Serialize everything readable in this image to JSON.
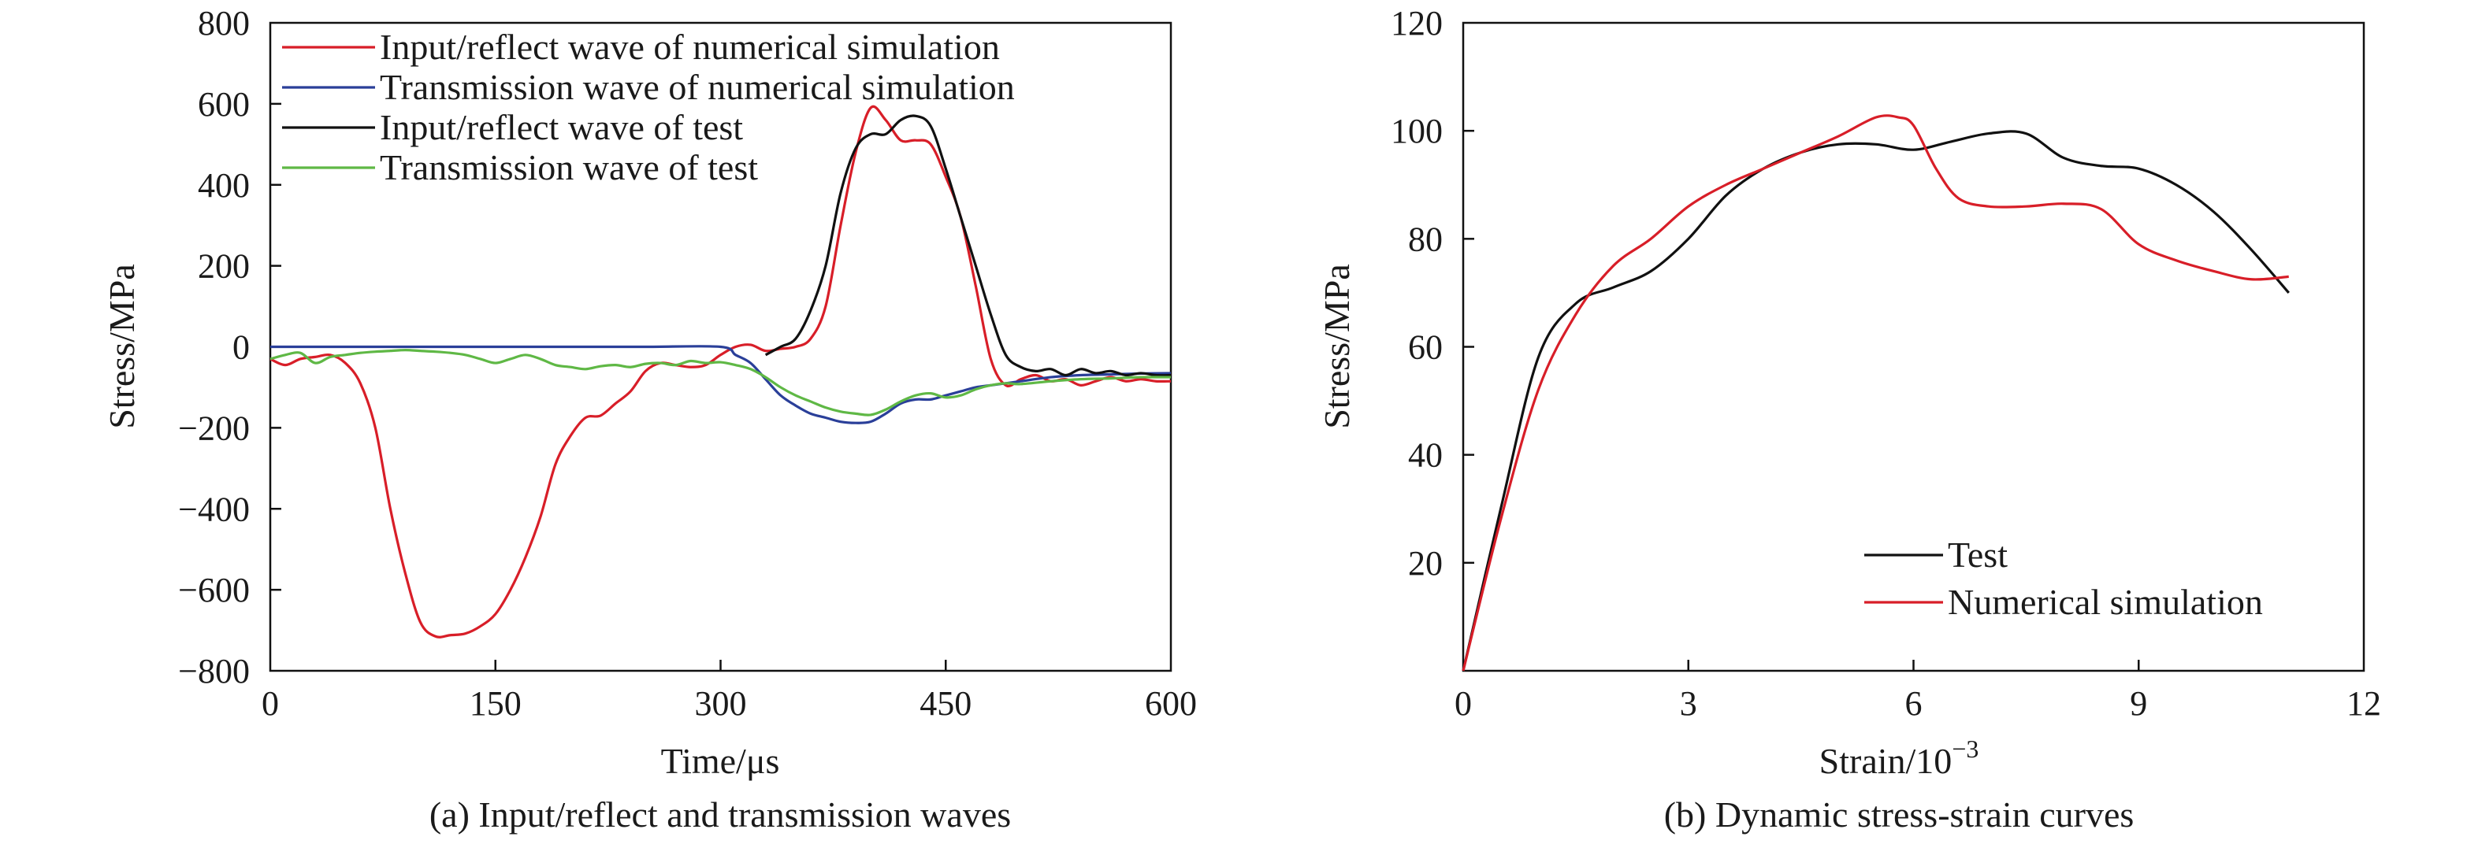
{
  "colors": {
    "red": "#d81e28",
    "blue": "#2a3f99",
    "black": "#111111",
    "green": "#5fb845"
  },
  "chart_data": [
    {
      "type": "line",
      "caption": "(a) Input/reflect and transmission waves",
      "xlabel": "Time/μs",
      "ylabel": "Stress/MPa",
      "xlim": [
        0,
        600
      ],
      "ylim": [
        -800,
        800
      ],
      "xticks": [
        0,
        150,
        300,
        450,
        600
      ],
      "yticks": [
        -800,
        -600,
        -400,
        -200,
        0,
        200,
        400,
        600,
        800
      ],
      "ytick_labels": [
        "−800",
        "−600",
        "−400",
        "−200",
        "0",
        "200",
        "400",
        "600",
        "800"
      ],
      "legend_position": "top-left",
      "series": [
        {
          "name": "Input/reflect wave of numerical simulation",
          "color": "#d81e28",
          "points": [
            [
              0,
              -30
            ],
            [
              10,
              -45
            ],
            [
              20,
              -30
            ],
            [
              30,
              -25
            ],
            [
              40,
              -20
            ],
            [
              50,
              -40
            ],
            [
              60,
              -90
            ],
            [
              70,
              -200
            ],
            [
              80,
              -400
            ],
            [
              90,
              -560
            ],
            [
              100,
              -680
            ],
            [
              110,
              -715
            ],
            [
              120,
              -712
            ],
            [
              130,
              -708
            ],
            [
              140,
              -690
            ],
            [
              150,
              -660
            ],
            [
              160,
              -600
            ],
            [
              170,
              -520
            ],
            [
              180,
              -420
            ],
            [
              190,
              -290
            ],
            [
              200,
              -220
            ],
            [
              210,
              -175
            ],
            [
              220,
              -170
            ],
            [
              230,
              -140
            ],
            [
              240,
              -110
            ],
            [
              250,
              -60
            ],
            [
              260,
              -40
            ],
            [
              270,
              -45
            ],
            [
              280,
              -50
            ],
            [
              290,
              -45
            ],
            [
              300,
              -20
            ],
            [
              310,
              0
            ],
            [
              320,
              5
            ],
            [
              330,
              -10
            ],
            [
              340,
              -5
            ],
            [
              350,
              0
            ],
            [
              360,
              20
            ],
            [
              370,
              100
            ],
            [
              380,
              300
            ],
            [
              390,
              480
            ],
            [
              400,
              590
            ],
            [
              410,
              560
            ],
            [
              420,
              510
            ],
            [
              430,
              510
            ],
            [
              440,
              500
            ],
            [
              450,
              420
            ],
            [
              460,
              320
            ],
            [
              470,
              150
            ],
            [
              480,
              -30
            ],
            [
              490,
              -95
            ],
            [
              500,
              -80
            ],
            [
              510,
              -70
            ],
            [
              520,
              -85
            ],
            [
              530,
              -80
            ],
            [
              540,
              -95
            ],
            [
              550,
              -85
            ],
            [
              560,
              -75
            ],
            [
              570,
              -85
            ],
            [
              580,
              -80
            ],
            [
              590,
              -85
            ],
            [
              600,
              -85
            ]
          ]
        },
        {
          "name": "Transmission wave of numerical simulation",
          "color": "#2a3f99",
          "points": [
            [
              0,
              0
            ],
            [
              50,
              0
            ],
            [
              100,
              0
            ],
            [
              150,
              0
            ],
            [
              200,
              0
            ],
            [
              250,
              0
            ],
            [
              300,
              0
            ],
            [
              310,
              -20
            ],
            [
              320,
              -40
            ],
            [
              330,
              -80
            ],
            [
              340,
              -120
            ],
            [
              350,
              -145
            ],
            [
              360,
              -165
            ],
            [
              370,
              -175
            ],
            [
              380,
              -185
            ],
            [
              390,
              -188
            ],
            [
              400,
              -185
            ],
            [
              410,
              -165
            ],
            [
              420,
              -140
            ],
            [
              430,
              -130
            ],
            [
              440,
              -130
            ],
            [
              450,
              -120
            ],
            [
              460,
              -110
            ],
            [
              470,
              -100
            ],
            [
              480,
              -95
            ],
            [
              490,
              -90
            ],
            [
              500,
              -85
            ],
            [
              520,
              -75
            ],
            [
              540,
              -70
            ],
            [
              560,
              -68
            ],
            [
              580,
              -66
            ],
            [
              600,
              -65
            ]
          ]
        },
        {
          "name": "Input/reflect wave of test",
          "color": "#111111",
          "points": [
            [
              330,
              -20
            ],
            [
              340,
              0
            ],
            [
              350,
              20
            ],
            [
              360,
              90
            ],
            [
              370,
              200
            ],
            [
              380,
              380
            ],
            [
              390,
              490
            ],
            [
              400,
              525
            ],
            [
              410,
              525
            ],
            [
              420,
              560
            ],
            [
              430,
              570
            ],
            [
              440,
              545
            ],
            [
              450,
              440
            ],
            [
              460,
              320
            ],
            [
              470,
              200
            ],
            [
              480,
              80
            ],
            [
              490,
              -20
            ],
            [
              500,
              -50
            ],
            [
              510,
              -60
            ],
            [
              520,
              -55
            ],
            [
              530,
              -70
            ],
            [
              540,
              -55
            ],
            [
              550,
              -65
            ],
            [
              560,
              -60
            ],
            [
              570,
              -70
            ],
            [
              580,
              -65
            ],
            [
              590,
              -70
            ],
            [
              600,
              -70
            ]
          ]
        },
        {
          "name": "Transmission wave of test",
          "color": "#5fb845",
          "points": [
            [
              0,
              -30
            ],
            [
              10,
              -20
            ],
            [
              20,
              -15
            ],
            [
              30,
              -40
            ],
            [
              40,
              -25
            ],
            [
              50,
              -20
            ],
            [
              60,
              -15
            ],
            [
              70,
              -12
            ],
            [
              80,
              -10
            ],
            [
              90,
              -8
            ],
            [
              100,
              -10
            ],
            [
              110,
              -12
            ],
            [
              120,
              -15
            ],
            [
              130,
              -20
            ],
            [
              140,
              -30
            ],
            [
              150,
              -40
            ],
            [
              160,
              -30
            ],
            [
              170,
              -20
            ],
            [
              180,
              -30
            ],
            [
              190,
              -45
            ],
            [
              200,
              -50
            ],
            [
              210,
              -55
            ],
            [
              220,
              -48
            ],
            [
              230,
              -45
            ],
            [
              240,
              -50
            ],
            [
              250,
              -42
            ],
            [
              260,
              -40
            ],
            [
              270,
              -45
            ],
            [
              280,
              -35
            ],
            [
              290,
              -40
            ],
            [
              300,
              -38
            ],
            [
              310,
              -45
            ],
            [
              320,
              -55
            ],
            [
              330,
              -75
            ],
            [
              340,
              -100
            ],
            [
              350,
              -120
            ],
            [
              360,
              -135
            ],
            [
              370,
              -150
            ],
            [
              380,
              -160
            ],
            [
              390,
              -165
            ],
            [
              400,
              -168
            ],
            [
              410,
              -155
            ],
            [
              420,
              -135
            ],
            [
              430,
              -120
            ],
            [
              440,
              -115
            ],
            [
              450,
              -125
            ],
            [
              460,
              -120
            ],
            [
              470,
              -105
            ],
            [
              480,
              -95
            ],
            [
              490,
              -90
            ],
            [
              500,
              -92
            ],
            [
              520,
              -85
            ],
            [
              540,
              -80
            ],
            [
              560,
              -78
            ],
            [
              580,
              -75
            ],
            [
              600,
              -75
            ]
          ]
        }
      ]
    },
    {
      "type": "line",
      "caption": "(b) Dynamic stress-strain curves",
      "xlabel": "Strain/10",
      "xlabel_superscript": "−3",
      "ylabel": "Stress/MPa",
      "xlim": [
        0,
        12
      ],
      "ylim": [
        0,
        120
      ],
      "xticks": [
        0,
        3,
        6,
        9,
        12
      ],
      "yticks": [
        20,
        40,
        60,
        80,
        100,
        120
      ],
      "legend_position": "bottom-right",
      "series": [
        {
          "name": "Test",
          "color": "#111111",
          "points": [
            [
              0,
              0
            ],
            [
              0.5,
              30
            ],
            [
              1.0,
              58
            ],
            [
              1.5,
              68
            ],
            [
              2.0,
              71
            ],
            [
              2.5,
              74
            ],
            [
              3.0,
              80
            ],
            [
              3.5,
              88
            ],
            [
              4.0,
              93
            ],
            [
              4.5,
              96
            ],
            [
              5.0,
              97.5
            ],
            [
              5.5,
              97.5
            ],
            [
              6.0,
              96.5
            ],
            [
              6.5,
              98
            ],
            [
              7.0,
              99.5
            ],
            [
              7.5,
              99.5
            ],
            [
              8.0,
              95
            ],
            [
              8.5,
              93.5
            ],
            [
              9.0,
              93
            ],
            [
              9.5,
              90
            ],
            [
              10.0,
              85
            ],
            [
              10.5,
              78
            ],
            [
              11.0,
              70
            ]
          ]
        },
        {
          "name": "Numerical simulation",
          "color": "#d81e28",
          "points": [
            [
              0,
              0
            ],
            [
              0.5,
              28
            ],
            [
              1.0,
              52
            ],
            [
              1.5,
              66
            ],
            [
              2.0,
              75
            ],
            [
              2.5,
              80
            ],
            [
              3.0,
              86
            ],
            [
              3.5,
              90
            ],
            [
              4.0,
              93
            ],
            [
              4.5,
              96
            ],
            [
              5.0,
              99
            ],
            [
              5.5,
              102.5
            ],
            [
              5.8,
              102.5
            ],
            [
              6.0,
              101
            ],
            [
              6.3,
              93
            ],
            [
              6.6,
              87.5
            ],
            [
              7.0,
              86
            ],
            [
              7.5,
              86
            ],
            [
              8.0,
              86.5
            ],
            [
              8.5,
              85.5
            ],
            [
              9.0,
              79
            ],
            [
              9.5,
              76
            ],
            [
              10.0,
              74
            ],
            [
              10.5,
              72.5
            ],
            [
              11.0,
              73
            ]
          ]
        }
      ]
    }
  ]
}
